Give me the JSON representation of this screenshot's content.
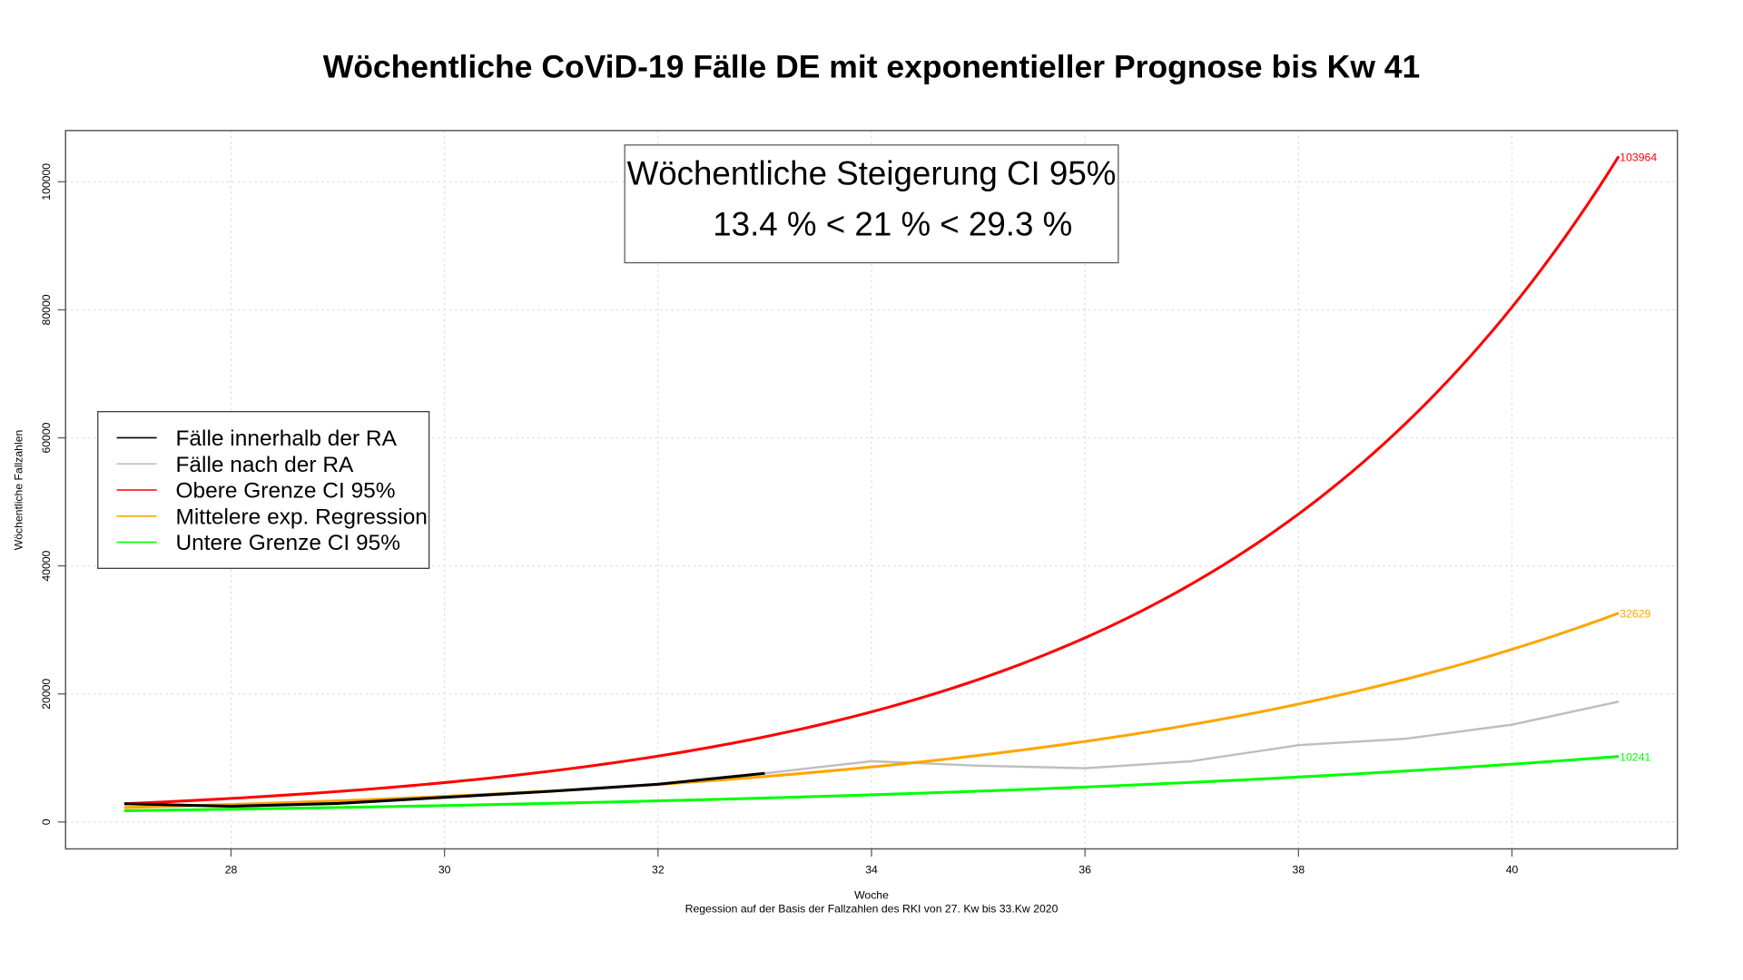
{
  "chart_data": {
    "type": "line",
    "title": "Wöchentliche CoViD-19 Fälle DE mit exponentieller Prognose bis Kw 41",
    "xlabel": "Woche",
    "subtitle": "Regession auf der Basis der Fallzahlen des RKI von 27. Kw bis 33.Kw 2020",
    "ylabel": "Wöchentliche Fallzahlen",
    "xlim": [
      26.45,
      41.55
    ],
    "ylim": [
      -4200,
      108000
    ],
    "xticks": [
      28,
      30,
      32,
      34,
      36,
      38,
      40
    ],
    "yticks": [
      0,
      20000,
      40000,
      60000,
      80000,
      100000
    ],
    "grid": true,
    "legend_position": "left-middle",
    "annotation": {
      "line1": "Wöchentliche Steigerung CI 95%",
      "line2": "13.4 % < 21 % < 29.3 %"
    },
    "series": [
      {
        "name": "Fälle innerhalb der RA",
        "color": "#000000",
        "width": 2.5,
        "x": [
          27,
          28,
          29,
          30,
          31,
          32,
          33
        ],
        "values": [
          2850,
          2450,
          2900,
          3850,
          4800,
          5900,
          7600
        ]
      },
      {
        "name": "Fälle nach der RA",
        "color": "#bebebe",
        "width": 2,
        "x": [
          33,
          34,
          35,
          36,
          37,
          38,
          39,
          40,
          41
        ],
        "values": [
          7600,
          9500,
          8800,
          8400,
          9500,
          12000,
          13000,
          15200,
          18800
        ]
      },
      {
        "name": "Obere Grenze CI 95%",
        "color": "#ff0000",
        "width": 2.5,
        "model": "exponential",
        "x_end": 41,
        "end_value": 103964,
        "weekly_growth": 0.293,
        "end_label": "103964"
      },
      {
        "name": "Mittelere exp. Regression",
        "color": "#ffa500",
        "width": 2.5,
        "model": "exponential",
        "x_end": 41,
        "end_value": 32629,
        "weekly_growth": 0.21,
        "end_label": "32629"
      },
      {
        "name": "Untere Grenze CI  95%",
        "color": "#00ff00",
        "width": 2.5,
        "model": "exponential",
        "x_end": 41,
        "end_value": 10241,
        "weekly_growth": 0.134,
        "end_label": "10241"
      }
    ]
  }
}
